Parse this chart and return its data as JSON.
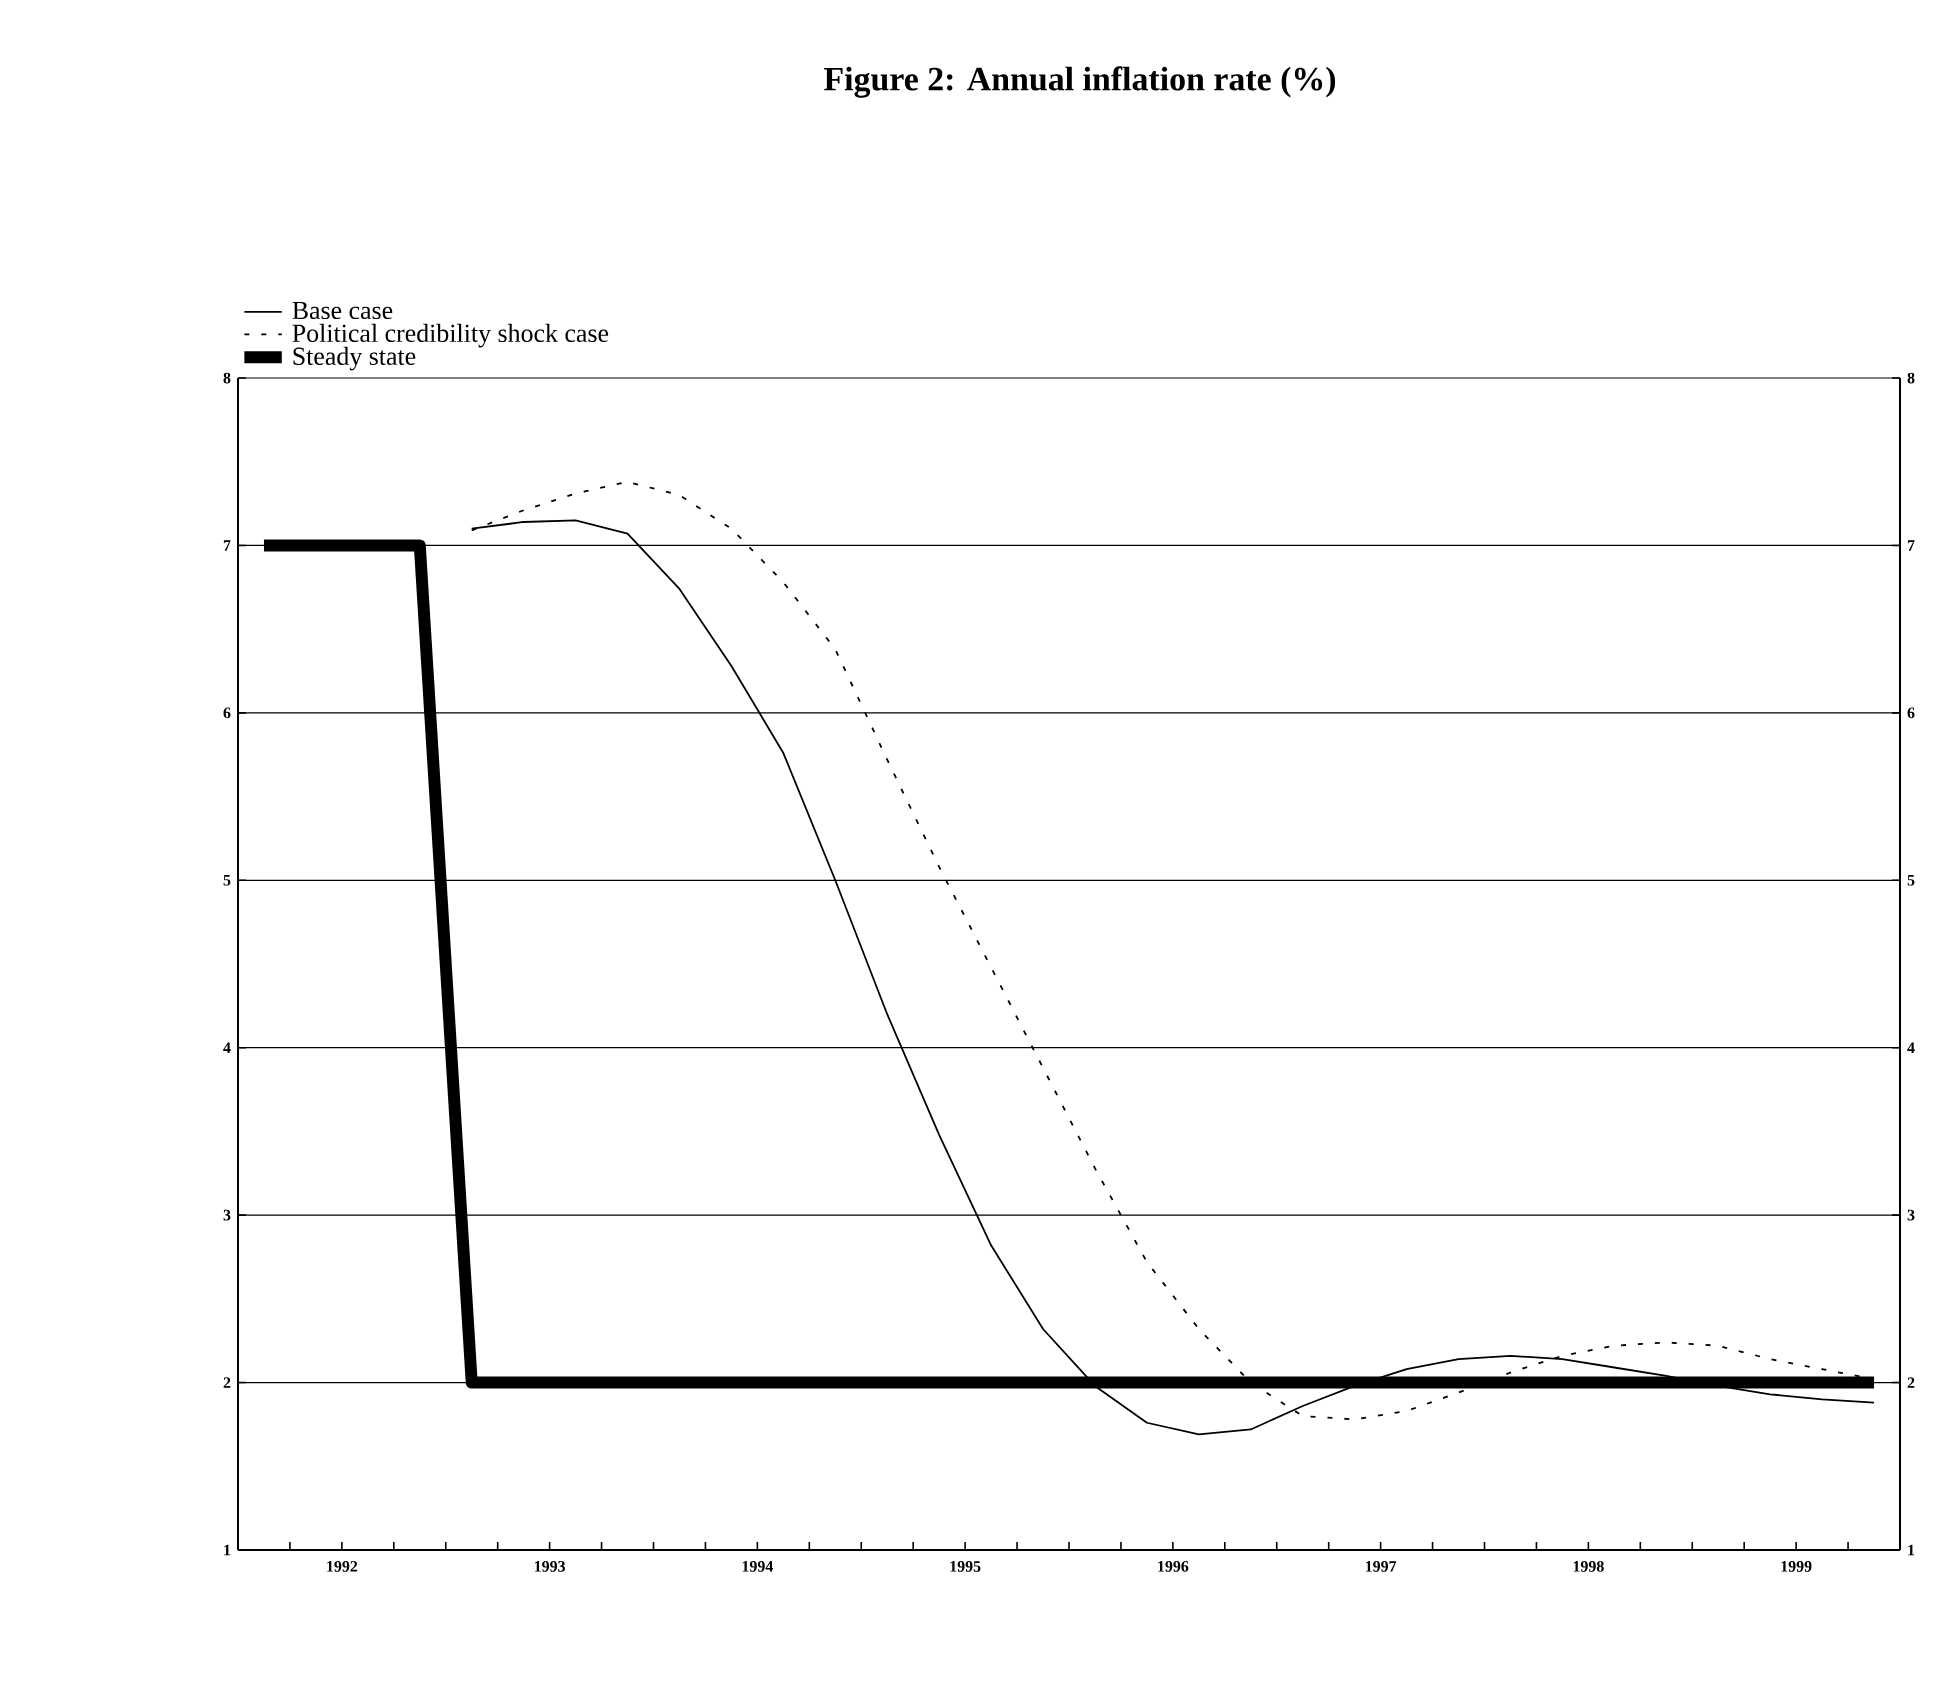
{
  "chart_data": {
    "type": "line",
    "title": "Figure 2: Annual inflation rate (%)",
    "xlim": [
      1992,
      2000
    ],
    "xticks": [
      {
        "value": 1992.25,
        "label": null
      },
      {
        "value": 1992.5,
        "label": "1992"
      },
      {
        "value": 1992.75,
        "label": null
      },
      {
        "value": 1993,
        "label": null
      },
      {
        "value": 1993.25,
        "label": null
      },
      {
        "value": 1993.5,
        "label": "1993"
      },
      {
        "value": 1993.75,
        "label": null
      },
      {
        "value": 1994,
        "label": null
      },
      {
        "value": 1994.25,
        "label": null
      },
      {
        "value": 1994.5,
        "label": "1994"
      },
      {
        "value": 1994.75,
        "label": null
      },
      {
        "value": 1995,
        "label": null
      },
      {
        "value": 1995.25,
        "label": null
      },
      {
        "value": 1995.5,
        "label": "1995"
      },
      {
        "value": 1995.75,
        "label": null
      },
      {
        "value": 1996,
        "label": null
      },
      {
        "value": 1996.25,
        "label": null
      },
      {
        "value": 1996.5,
        "label": "1996"
      },
      {
        "value": 1996.75,
        "label": null
      },
      {
        "value": 1997,
        "label": null
      },
      {
        "value": 1997.25,
        "label": null
      },
      {
        "value": 1997.5,
        "label": "1997"
      },
      {
        "value": 1997.75,
        "label": null
      },
      {
        "value": 1998,
        "label": null
      },
      {
        "value": 1998.25,
        "label": null
      },
      {
        "value": 1998.5,
        "label": "1998"
      },
      {
        "value": 1998.75,
        "label": null
      },
      {
        "value": 1999,
        "label": null
      },
      {
        "value": 1999.25,
        "label": null
      },
      {
        "value": 1999.5,
        "label": "1999"
      },
      {
        "value": 1999.75,
        "label": null
      }
    ],
    "ylim": [
      1,
      8
    ],
    "yticks": [
      1,
      2,
      3,
      4,
      5,
      6,
      7,
      8
    ],
    "y2lim": [
      1,
      8
    ],
    "y2ticks": [
      1,
      2,
      3,
      4,
      5,
      6,
      7,
      8
    ],
    "grid": "y",
    "legend": "top left",
    "series": [
      {
        "name": "Base case",
        "color": "#000000",
        "line_style": "solid",
        "x": [
          1993.125,
          1993.375,
          1993.625,
          1993.875,
          1994.125,
          1994.375,
          1994.625,
          1994.875,
          1995.125,
          1995.375,
          1995.625,
          1995.875,
          1996.125,
          1996.375,
          1996.625,
          1996.875,
          1997.125,
          1997.375,
          1997.625,
          1997.875,
          1998.125,
          1998.375,
          1998.625,
          1998.875,
          1999.125,
          1999.375,
          1999.625,
          1999.875
        ],
        "values": [
          7.1,
          7.14,
          7.15,
          7.07,
          6.74,
          6.28,
          5.76,
          5.0,
          4.2,
          3.48,
          2.82,
          2.32,
          1.98,
          1.76,
          1.69,
          1.72,
          1.86,
          1.98,
          2.08,
          2.14,
          2.16,
          2.14,
          2.09,
          2.04,
          1.98,
          1.93,
          1.9,
          1.88
        ]
      },
      {
        "name": "Political credibility shock case",
        "color": "#000000",
        "line_style": "dashed",
        "x": [
          1993.125,
          1993.375,
          1993.625,
          1993.875,
          1994.125,
          1994.375,
          1994.625,
          1994.875,
          1995.125,
          1995.375,
          1995.625,
          1995.875,
          1996.125,
          1996.375,
          1996.625,
          1996.875,
          1997.125,
          1997.375,
          1997.625,
          1997.875,
          1998.125,
          1998.375,
          1998.625,
          1998.875,
          1999.125,
          1999.375,
          1999.625,
          1999.875
        ],
        "values": [
          7.09,
          7.21,
          7.31,
          7.38,
          7.3,
          7.1,
          6.78,
          6.38,
          5.72,
          5.08,
          4.48,
          3.88,
          3.28,
          2.72,
          2.32,
          2.0,
          1.8,
          1.78,
          1.83,
          1.94,
          2.06,
          2.16,
          2.22,
          2.24,
          2.22,
          2.14,
          2.08,
          2.02
        ]
      },
      {
        "name": "Steady state",
        "color": "#000000",
        "line_style": "solid",
        "x": [
          1992.125,
          1992.875,
          1993.125,
          1999.875
        ],
        "values": [
          7,
          7,
          2,
          2
        ]
      }
    ]
  }
}
